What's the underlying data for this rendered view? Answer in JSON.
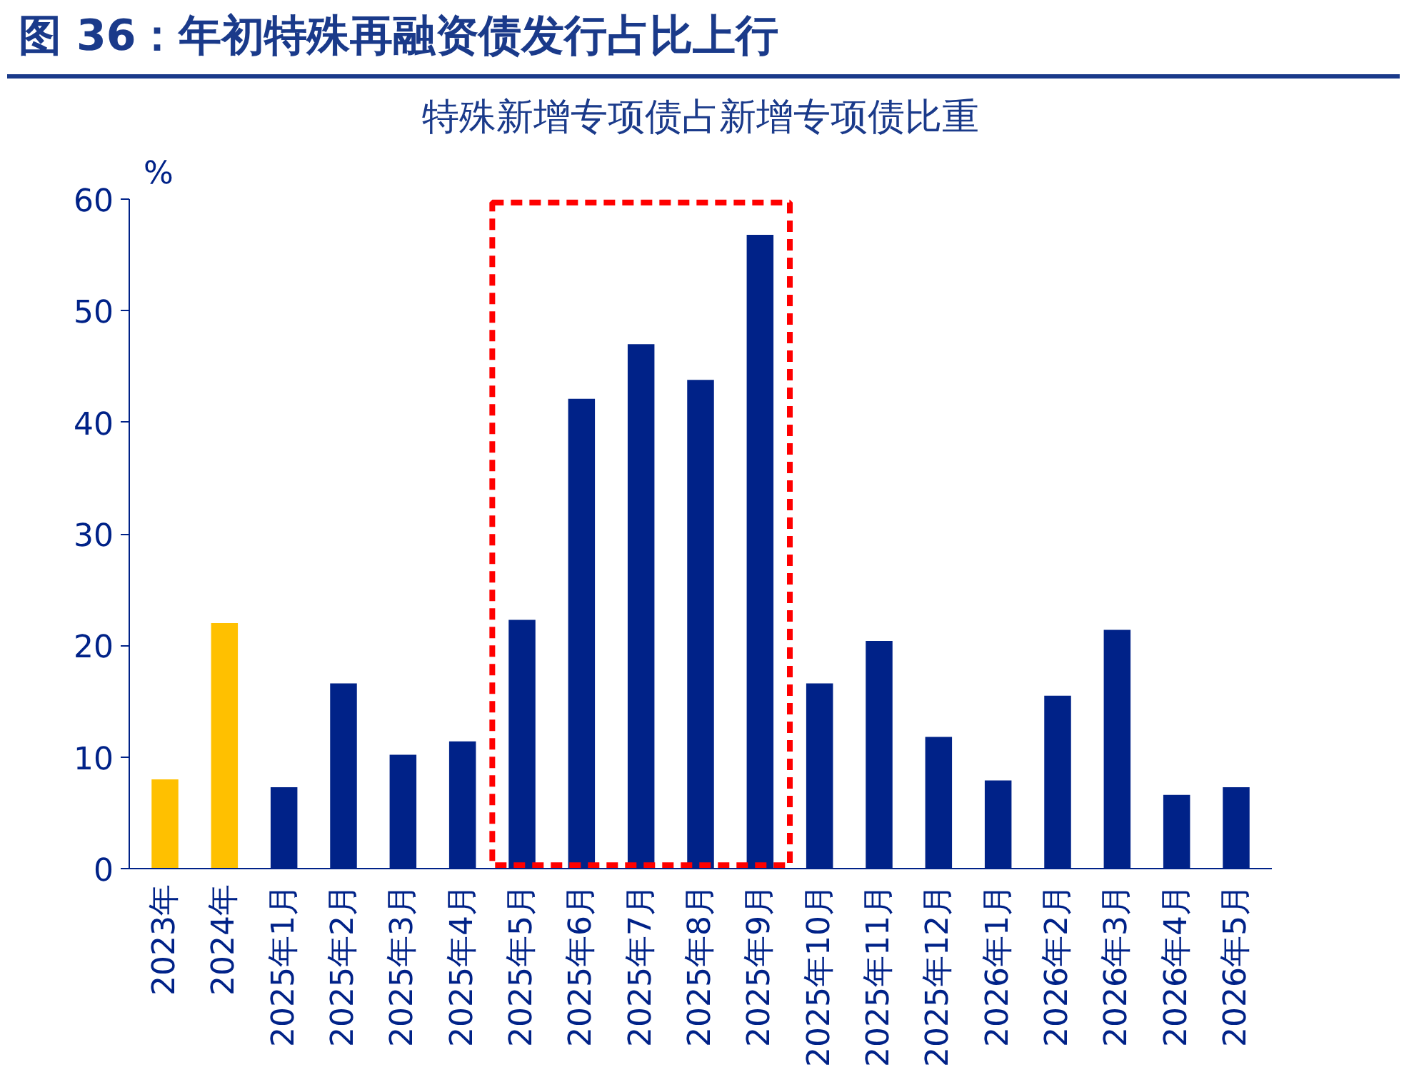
{
  "chart_data": {
    "type": "bar",
    "title": "图 36：年初特殊再融资债发行占比上行",
    "subtitle": "特殊新增专项债占新增专项债比重",
    "ylabel": "%",
    "categories": [
      "2023年",
      "2024年",
      "2025年1月",
      "2025年2月",
      "2025年3月",
      "2025年4月",
      "2025年5月",
      "2025年6月",
      "2025年7月",
      "2025年8月",
      "2025年9月",
      "2025年10月",
      "2025年11月",
      "2025年12月",
      "2026年1月",
      "2026年2月",
      "2026年3月",
      "2026年4月",
      "2026年5月"
    ],
    "values": [
      8.0,
      22.0,
      7.3,
      16.6,
      10.2,
      11.4,
      22.3,
      42.1,
      47.0,
      43.8,
      56.8,
      16.6,
      20.4,
      11.8,
      7.9,
      15.5,
      21.4,
      6.6,
      7.3
    ],
    "colors": [
      "#ffc000",
      "#ffc000",
      "#002288",
      "#002288",
      "#002288",
      "#002288",
      "#002288",
      "#002288",
      "#002288",
      "#002288",
      "#002288",
      "#002288",
      "#002288",
      "#002288",
      "#002288",
      "#002288",
      "#002288",
      "#002288",
      "#002288"
    ],
    "ylim": [
      0,
      60
    ],
    "yticks": [
      0,
      10,
      20,
      30,
      40,
      50,
      60
    ],
    "grid": false
  }
}
